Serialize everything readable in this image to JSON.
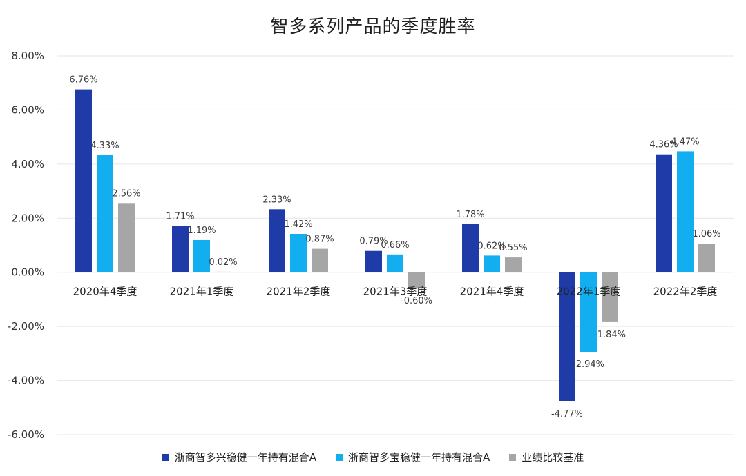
{
  "chart_data": {
    "type": "bar",
    "title": "智多系列产品的季度胜率",
    "categories": [
      "2020年4季度",
      "2021年1季度",
      "2021年2季度",
      "2021年3季度",
      "2021年4季度",
      "2022年1季度",
      "2022年2季度"
    ],
    "series": [
      {
        "name": "浙商智多兴稳健一年持有混合A",
        "color": "#1f3ba8",
        "values": [
          6.76,
          1.71,
          2.33,
          0.79,
          1.78,
          -4.77,
          4.36
        ],
        "labels": [
          "6.76%",
          "1.71%",
          "2.33%",
          "0.79%",
          "1.78%",
          "-4.77%",
          "4.36%"
        ]
      },
      {
        "name": "浙商智多宝稳健一年持有混合A",
        "color": "#13aeef",
        "values": [
          4.33,
          1.19,
          1.42,
          0.66,
          0.62,
          -2.94,
          4.47
        ],
        "labels": [
          "4.33%",
          "1.19%",
          "1.42%",
          "0.66%",
          "0.62%",
          "-2.94%",
          "4.47%"
        ]
      },
      {
        "name": "业绩比较基准",
        "color": "#a6a6a6",
        "values": [
          2.56,
          0.02,
          0.87,
          -0.6,
          0.55,
          -1.84,
          1.06
        ],
        "labels": [
          "2.56%",
          "0.02%",
          "0.87%",
          "-0.60%",
          "0.55%",
          "-1.84%",
          "1.06%"
        ]
      }
    ],
    "ylim": [
      -6,
      8
    ],
    "yticks": [
      8,
      6,
      4,
      2,
      0,
      -2,
      -4,
      -6
    ],
    "ytick_labels": [
      "8.00%",
      "6.00%",
      "4.00%",
      "2.00%",
      "0.00%",
      "-2.00%",
      "-4.00%",
      "-6.00%"
    ],
    "grid": true,
    "legend_position": "bottom"
  }
}
